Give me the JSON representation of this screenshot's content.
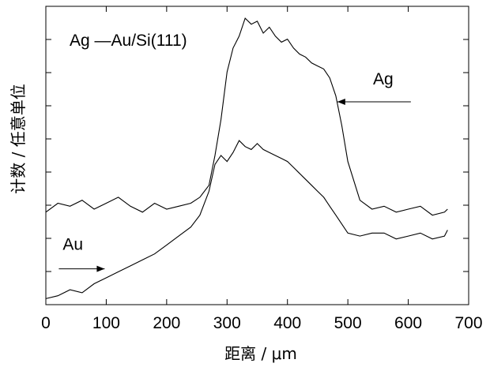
{
  "chart_data": {
    "type": "line",
    "title": "Ag —Au/Si(111)",
    "xlabel": "距离 / μm",
    "ylabel": "计数 / 任意单位",
    "xlim": [
      0,
      700
    ],
    "ylim": [
      0,
      1
    ],
    "xticks": [
      "0",
      "100",
      "200",
      "300",
      "400",
      "500",
      "600",
      "700"
    ],
    "y_tick_count": 9,
    "y_tick_labels_shown": false,
    "grid": false,
    "series": [
      {
        "name": "Ag",
        "x": [
          0,
          20,
          40,
          60,
          80,
          100,
          120,
          140,
          160,
          180,
          200,
          220,
          240,
          255,
          270,
          280,
          290,
          300,
          310,
          320,
          330,
          340,
          350,
          360,
          370,
          380,
          390,
          400,
          410,
          420,
          430,
          440,
          450,
          460,
          470,
          480,
          490,
          500,
          520,
          540,
          560,
          580,
          600,
          620,
          640,
          660,
          665
        ],
        "y": [
          0.31,
          0.34,
          0.33,
          0.35,
          0.32,
          0.34,
          0.36,
          0.33,
          0.31,
          0.34,
          0.32,
          0.33,
          0.34,
          0.36,
          0.4,
          0.5,
          0.62,
          0.78,
          0.86,
          0.9,
          0.96,
          0.94,
          0.95,
          0.91,
          0.93,
          0.9,
          0.88,
          0.89,
          0.86,
          0.84,
          0.83,
          0.81,
          0.8,
          0.79,
          0.76,
          0.7,
          0.6,
          0.48,
          0.35,
          0.32,
          0.33,
          0.31,
          0.32,
          0.33,
          0.3,
          0.31,
          0.32
        ]
      },
      {
        "name": "Au",
        "x": [
          0,
          20,
          40,
          60,
          80,
          100,
          120,
          140,
          160,
          180,
          200,
          220,
          240,
          255,
          270,
          280,
          290,
          300,
          310,
          320,
          330,
          340,
          350,
          360,
          370,
          380,
          390,
          400,
          410,
          420,
          430,
          440,
          450,
          460,
          470,
          480,
          490,
          500,
          520,
          540,
          560,
          580,
          600,
          620,
          640,
          660,
          665
        ],
        "y": [
          0.02,
          0.03,
          0.05,
          0.04,
          0.07,
          0.09,
          0.11,
          0.13,
          0.15,
          0.17,
          0.2,
          0.23,
          0.26,
          0.3,
          0.38,
          0.47,
          0.5,
          0.48,
          0.51,
          0.55,
          0.53,
          0.52,
          0.54,
          0.52,
          0.51,
          0.5,
          0.49,
          0.48,
          0.46,
          0.44,
          0.42,
          0.4,
          0.38,
          0.36,
          0.33,
          0.3,
          0.27,
          0.24,
          0.23,
          0.24,
          0.24,
          0.22,
          0.23,
          0.24,
          0.22,
          0.23,
          0.25
        ]
      }
    ],
    "annotations": [
      {
        "text": "Ag",
        "series": "Ag",
        "x": 480,
        "y": 0.68
      },
      {
        "text": "Au",
        "series": "Au",
        "x": 100,
        "y": 0.12
      }
    ]
  }
}
